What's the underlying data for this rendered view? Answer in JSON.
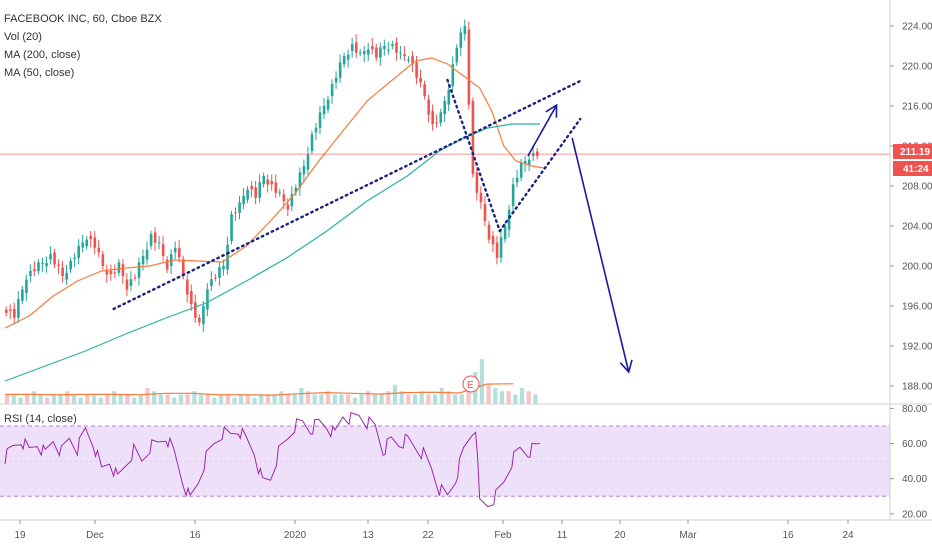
{
  "header": {
    "symbol_line": "FACEBOOK INC, 60, Cboe BZX",
    "indicator_1": "Vol (20)",
    "indicator_2": "MA (200, close)",
    "indicator_3": "MA (50, close)",
    "rsi_label": "RSI (14, close)"
  },
  "price_badges": {
    "last_price": "211.19",
    "countdown": "41:24"
  },
  "earnings_marker": "E",
  "colors": {
    "up": "#26a69a",
    "down": "#ef5350",
    "ma50": "#f57c3d",
    "ma200": "#26b3a3",
    "trend": "#1a237e",
    "arrow": "#1a1aa0",
    "rsi_line": "#9c27b0",
    "rsi_band": "#ead8f7",
    "price_line": "#ef5350"
  },
  "chart_data": [
    {
      "type": "candlestick",
      "title": "FACEBOOK INC, 60, Cboe BZX",
      "y_ticks": [
        188,
        192,
        196,
        200,
        204,
        208,
        212,
        216,
        220,
        224
      ],
      "ylim": [
        186.2,
        225.8
      ],
      "x_ticks": [
        "19",
        "Dec",
        "16",
        "2020",
        "13",
        "22",
        "Feb",
        "11",
        "20",
        "Mar",
        "16",
        "24"
      ],
      "last_price": 211.19,
      "price_path": [
        [
          0,
          196
        ],
        [
          3,
          195
        ],
        [
          6,
          199
        ],
        [
          9,
          200
        ],
        [
          12,
          201
        ],
        [
          15,
          199
        ],
        [
          18,
          201
        ],
        [
          21,
          203
        ],
        [
          23,
          202
        ],
        [
          25,
          200
        ],
        [
          27,
          199
        ],
        [
          29,
          200
        ],
        [
          31,
          198
        ],
        [
          33,
          199
        ],
        [
          35,
          201
        ],
        [
          37,
          203
        ],
        [
          39,
          202
        ],
        [
          41,
          200
        ],
        [
          43,
          202
        ],
        [
          45,
          199
        ],
        [
          47,
          196
        ],
        [
          49,
          194
        ],
        [
          51,
          198
        ],
        [
          53,
          199
        ],
        [
          55,
          200
        ],
        [
          57,
          205
        ],
        [
          59,
          206
        ],
        [
          61,
          208
        ],
        [
          63,
          207
        ],
        [
          65,
          209
        ],
        [
          67,
          208
        ],
        [
          69,
          207
        ],
        [
          71,
          206
        ],
        [
          73,
          208
        ],
        [
          75,
          210
        ],
        [
          77,
          213
        ],
        [
          79,
          215
        ],
        [
          81,
          217
        ],
        [
          83,
          219
        ],
        [
          85,
          221
        ],
        [
          87,
          222
        ],
        [
          89,
          221
        ],
        [
          91,
          222
        ],
        [
          93,
          221
        ],
        [
          95,
          222
        ],
        [
          97,
          222
        ],
        [
          99,
          221
        ],
        [
          101,
          221
        ],
        [
          103,
          219
        ],
        [
          105,
          217
        ],
        [
          107,
          214
        ],
        [
          109,
          215
        ],
        [
          111,
          218
        ],
        [
          113,
          222
        ],
        [
          115,
          224
        ],
        [
          117,
          209
        ],
        [
          119,
          206
        ],
        [
          121,
          203
        ],
        [
          123,
          201
        ],
        [
          125,
          204
        ],
        [
          127,
          208
        ],
        [
          129,
          210
        ],
        [
          131,
          211
        ],
        [
          133,
          211.19
        ]
      ],
      "ma50": [
        [
          0,
          193.8
        ],
        [
          6,
          195
        ],
        [
          12,
          197
        ],
        [
          18,
          198.5
        ],
        [
          24,
          199.5
        ],
        [
          30,
          199.8
        ],
        [
          36,
          200
        ],
        [
          42,
          200.6
        ],
        [
          48,
          200.5
        ],
        [
          54,
          200.4
        ],
        [
          60,
          202
        ],
        [
          66,
          204.5
        ],
        [
          72,
          207.2
        ],
        [
          78,
          210.5
        ],
        [
          84,
          213.5
        ],
        [
          90,
          216.5
        ],
        [
          96,
          218.5
        ],
        [
          102,
          220.5
        ],
        [
          106,
          220.8
        ],
        [
          110,
          220.2
        ],
        [
          114,
          219
        ],
        [
          118,
          217.8
        ],
        [
          121,
          215.5
        ],
        [
          124,
          212
        ],
        [
          127,
          210.5
        ],
        [
          131,
          210
        ],
        [
          134,
          209.8
        ]
      ],
      "ma200": [
        [
          0,
          188.5
        ],
        [
          10,
          190
        ],
        [
          20,
          191.5
        ],
        [
          30,
          193.2
        ],
        [
          40,
          194.8
        ],
        [
          50,
          196.3
        ],
        [
          60,
          198.5
        ],
        [
          70,
          200.8
        ],
        [
          80,
          203.5
        ],
        [
          90,
          206.5
        ],
        [
          100,
          209
        ],
        [
          108,
          211.5
        ],
        [
          114,
          212.8
        ],
        [
          120,
          213.8
        ],
        [
          126,
          214.2
        ],
        [
          133,
          214.2
        ]
      ],
      "volume": [
        3,
        3,
        2,
        3,
        4,
        3,
        2,
        3,
        3,
        4,
        3,
        2,
        3,
        3,
        2,
        3,
        4,
        3,
        3,
        2,
        3,
        5,
        4,
        3,
        3,
        2,
        3,
        3,
        4,
        3,
        3,
        2,
        3,
        3,
        2,
        3,
        3,
        2,
        3,
        3,
        3,
        4,
        3,
        3,
        5,
        4,
        3,
        3,
        4,
        3,
        3,
        3,
        2,
        3,
        4,
        3,
        3,
        4,
        6,
        4,
        3,
        3,
        4,
        3,
        3,
        5,
        4,
        3,
        3,
        8,
        10,
        14,
        6,
        5,
        4,
        4,
        3,
        5,
        4,
        3
      ],
      "annotations": [
        {
          "kind": "dotted-trendline",
          "points": [
            [
              27,
              195.7
            ],
            [
              143,
              218.5
            ]
          ]
        },
        {
          "kind": "dotted-trendline",
          "points": [
            [
              110,
              218.6
            ],
            [
              123,
              203.5
            ]
          ]
        },
        {
          "kind": "dotted-trendline",
          "points": [
            [
              123,
              203.5
            ],
            [
              143,
              214.7
            ]
          ]
        },
        {
          "kind": "arrow",
          "points": [
            [
              130,
              211
            ],
            [
              137,
              216
            ]
          ]
        },
        {
          "kind": "arrow",
          "points": [
            [
              141,
              212.8
            ],
            [
              155,
              189.5
            ]
          ]
        }
      ]
    },
    {
      "type": "line",
      "title": "RSI (14, close)",
      "y_ticks": [
        20,
        40,
        60,
        80
      ],
      "ylim": [
        16.5,
        82.5
      ],
      "band": [
        30,
        70
      ],
      "values": [
        [
          0,
          52
        ],
        [
          2,
          58
        ],
        [
          4,
          62
        ],
        [
          6,
          56
        ],
        [
          8,
          60
        ],
        [
          10,
          54
        ],
        [
          12,
          62
        ],
        [
          14,
          55
        ],
        [
          16,
          63
        ],
        [
          18,
          57
        ],
        [
          20,
          68
        ],
        [
          22,
          60
        ],
        [
          24,
          45
        ],
        [
          26,
          50
        ],
        [
          28,
          40
        ],
        [
          30,
          48
        ],
        [
          32,
          56
        ],
        [
          34,
          50
        ],
        [
          36,
          58
        ],
        [
          38,
          60
        ],
        [
          40,
          64
        ],
        [
          42,
          55
        ],
        [
          44,
          40
        ],
        [
          46,
          28
        ],
        [
          48,
          38
        ],
        [
          50,
          52
        ],
        [
          52,
          60
        ],
        [
          54,
          66
        ],
        [
          56,
          65
        ],
        [
          58,
          68
        ],
        [
          60,
          62
        ],
        [
          62,
          55
        ],
        [
          64,
          38
        ],
        [
          66,
          40
        ],
        [
          68,
          55
        ],
        [
          70,
          62
        ],
        [
          72,
          70
        ],
        [
          74,
          72
        ],
        [
          76,
          68
        ],
        [
          78,
          72
        ],
        [
          80,
          70
        ],
        [
          82,
          65
        ],
        [
          84,
          76
        ],
        [
          86,
          74
        ],
        [
          88,
          76
        ],
        [
          90,
          72
        ],
        [
          92,
          70
        ],
        [
          94,
          56
        ],
        [
          96,
          62
        ],
        [
          98,
          60
        ],
        [
          100,
          62
        ],
        [
          102,
          58
        ],
        [
          104,
          54
        ],
        [
          106,
          46
        ],
        [
          108,
          34
        ],
        [
          110,
          30
        ],
        [
          112,
          40
        ],
        [
          114,
          56
        ],
        [
          116,
          66
        ],
        [
          117,
          70
        ],
        [
          118,
          26
        ],
        [
          120,
          25
        ],
        [
          122,
          30
        ],
        [
          124,
          38
        ],
        [
          126,
          50
        ],
        [
          128,
          57
        ],
        [
          130,
          55
        ],
        [
          132,
          58
        ],
        [
          133,
          60
        ]
      ]
    }
  ]
}
